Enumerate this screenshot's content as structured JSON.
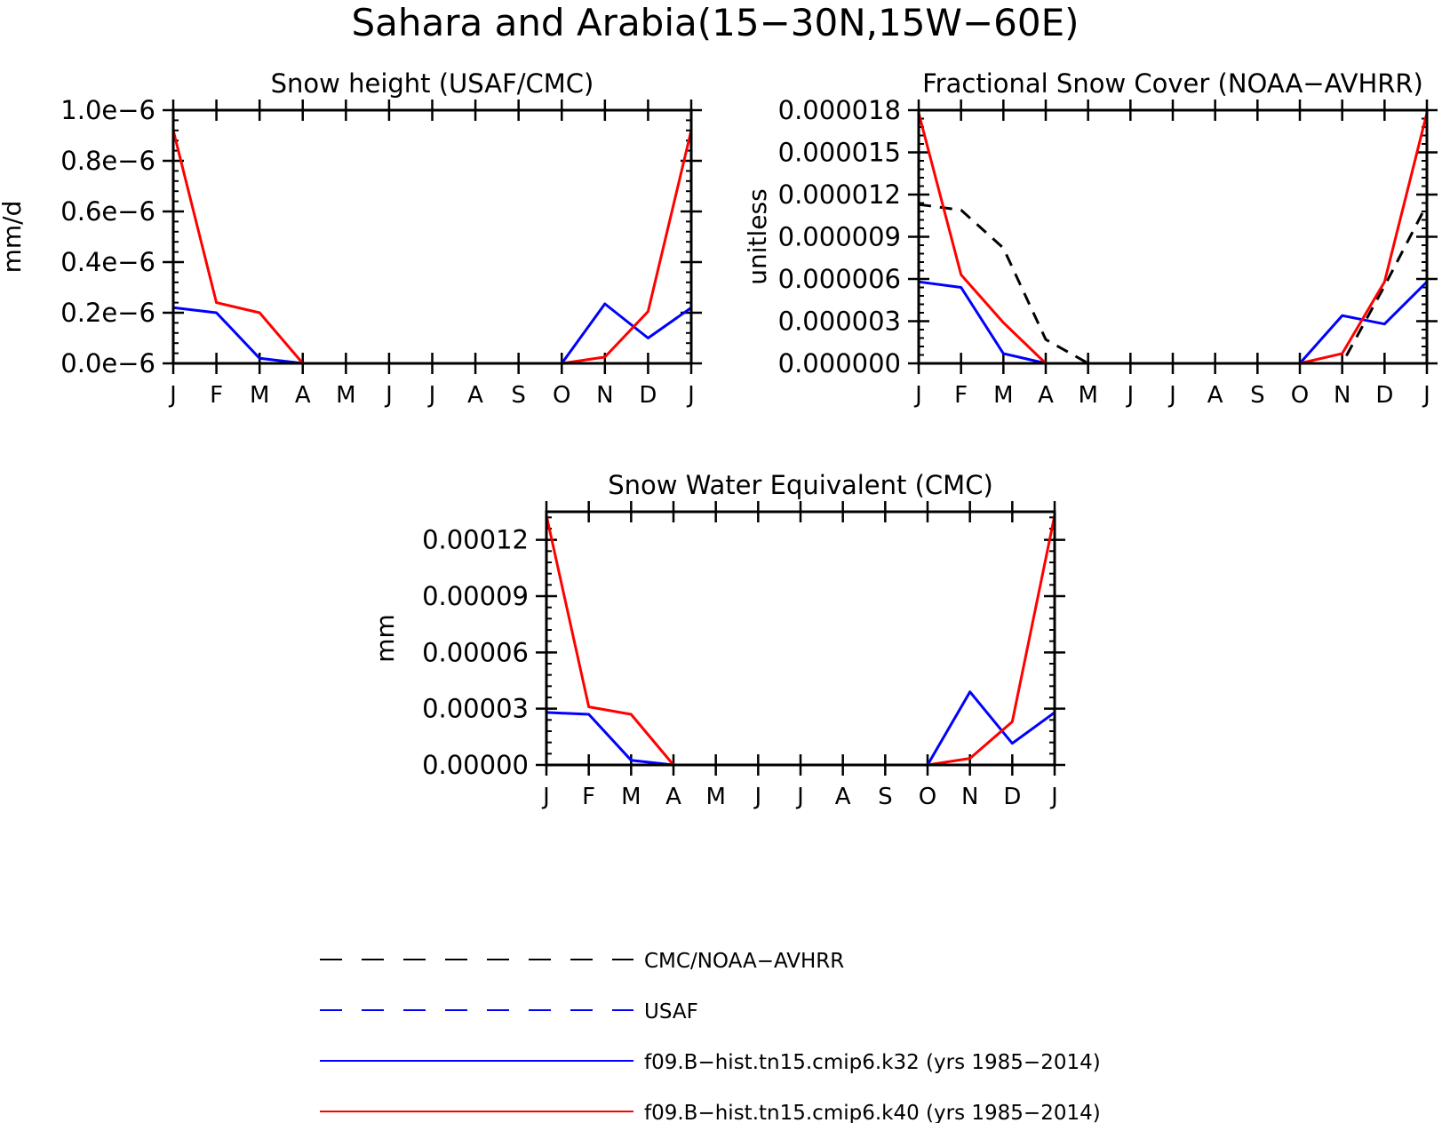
{
  "figure": {
    "title": "Sahara and Arabia(15−30N,15W−60E)"
  },
  "colors": {
    "obs": "#000000",
    "usaf": "#0000ff",
    "k32": "#0000ff",
    "k40": "#ff0000"
  },
  "legend": {
    "items": [
      {
        "label": "CMC/NOAA−AVHRR",
        "color": "#000000",
        "dashed": true
      },
      {
        "label": "USAF",
        "color": "#0000ff",
        "dashed": true
      },
      {
        "label": "f09.B−hist.tn15.cmip6.k32 (yrs 1985−2014)",
        "color": "#0000ff",
        "dashed": false
      },
      {
        "label": "f09.B−hist.tn15.cmip6.k40 (yrs 1985−2014)",
        "color": "#ff0000",
        "dashed": false
      }
    ]
  },
  "chart_data": [
    {
      "type": "line",
      "title": "Snow height (USAF/CMC)",
      "xlabel": "",
      "ylabel": "mm/d",
      "categories": [
        "J",
        "F",
        "M",
        "A",
        "M",
        "J",
        "J",
        "A",
        "S",
        "O",
        "N",
        "D",
        "J"
      ],
      "ylim": [
        0,
        1e-06
      ],
      "yticks": [
        0,
        2e-07,
        4e-07,
        6e-07,
        8e-07,
        1e-06
      ],
      "yticklabels": [
        "0.0e−6",
        "0.2e−6",
        "0.4e−6",
        "0.6e−6",
        "0.8e−6",
        "1.0e−6"
      ],
      "grid": false,
      "series": [
        {
          "name": "CMC/NOAA−AVHRR",
          "color": "#000000",
          "dashed": true,
          "values": [
            0,
            0,
            0,
            0,
            0,
            0,
            0,
            0,
            0,
            0,
            0,
            0,
            0
          ]
        },
        {
          "name": "f09.B−hist.tn15.cmip6.k32 (yrs 1985−2014)",
          "color": "#0000ff",
          "dashed": false,
          "values": [
            2.2e-07,
            2e-07,
            2e-08,
            0,
            0,
            0,
            0,
            0,
            0,
            0,
            2.35e-07,
            1e-07,
            2.2e-07
          ]
        },
        {
          "name": "f09.B−hist.tn15.cmip6.k40 (yrs 1985−2014)",
          "color": "#ff0000",
          "dashed": false,
          "values": [
            9.2e-07,
            2.4e-07,
            2e-07,
            0,
            0,
            0,
            0,
            0,
            0,
            0,
            2.5e-08,
            2.05e-07,
            9.2e-07
          ]
        }
      ]
    },
    {
      "type": "line",
      "title": "Fractional Snow Cover (NOAA−AVHRR)",
      "xlabel": "",
      "ylabel": "unitless",
      "categories": [
        "J",
        "F",
        "M",
        "A",
        "M",
        "J",
        "J",
        "A",
        "S",
        "O",
        "N",
        "D",
        "J"
      ],
      "ylim": [
        0,
        1.8e-05
      ],
      "yticks": [
        0,
        3e-06,
        6e-06,
        9e-06,
        1.2e-05,
        1.5e-05,
        1.8e-05
      ],
      "yticklabels": [
        "0.000000",
        "0.000003",
        "0.000006",
        "0.000009",
        "0.000012",
        "0.000015",
        "0.000018"
      ],
      "grid": false,
      "series": [
        {
          "name": "CMC/NOAA−AVHRR",
          "color": "#000000",
          "dashed": true,
          "values": [
            1.13e-05,
            1.09e-05,
            8.2e-06,
            1.7e-06,
            0,
            0,
            0,
            0,
            0,
            0,
            0,
            5.5e-06,
            1.13e-05
          ]
        },
        {
          "name": "f09.B−hist.tn15.cmip6.k32 (yrs 1985−2014)",
          "color": "#0000ff",
          "dashed": false,
          "values": [
            5.8e-06,
            5.4e-06,
            7e-07,
            0,
            0,
            0,
            0,
            0,
            0,
            0,
            3.4e-06,
            2.8e-06,
            5.8e-06
          ]
        },
        {
          "name": "f09.B−hist.tn15.cmip6.k40 (yrs 1985−2014)",
          "color": "#ff0000",
          "dashed": false,
          "values": [
            1.78e-05,
            6.3e-06,
            2.9e-06,
            0,
            0,
            0,
            0,
            0,
            0,
            0,
            7e-07,
            5.8e-06,
            1.78e-05
          ]
        }
      ]
    },
    {
      "type": "line",
      "title": "Snow Water Equivalent (CMC)",
      "xlabel": "",
      "ylabel": "mm",
      "categories": [
        "J",
        "F",
        "M",
        "A",
        "M",
        "J",
        "J",
        "A",
        "S",
        "O",
        "N",
        "D",
        "J"
      ],
      "ylim": [
        0,
        0.000135
      ],
      "yticks": [
        0,
        3e-05,
        6e-05,
        9e-05,
        0.00012
      ],
      "yticklabels": [
        "0.00000",
        "0.00003",
        "0.00006",
        "0.00009",
        "0.00012"
      ],
      "grid": false,
      "series": [
        {
          "name": "CMC/NOAA−AVHRR",
          "color": "#000000",
          "dashed": true,
          "values": [
            0,
            0,
            0,
            0,
            0,
            0,
            0,
            0,
            0,
            0,
            0,
            0,
            0
          ]
        },
        {
          "name": "f09.B−hist.tn15.cmip6.k32 (yrs 1985−2014)",
          "color": "#0000ff",
          "dashed": false,
          "values": [
            2.8e-05,
            2.7e-05,
            2.5e-06,
            0,
            0,
            0,
            0,
            0,
            0,
            0,
            3.9e-05,
            1.15e-05,
            2.8e-05
          ]
        },
        {
          "name": "f09.B−hist.tn15.cmip6.k40 (yrs 1985−2014)",
          "color": "#ff0000",
          "dashed": false,
          "values": [
            0.000133,
            3.1e-05,
            2.7e-05,
            0,
            0,
            0,
            0,
            0,
            0,
            0,
            3.5e-06,
            2.3e-05,
            0.000133
          ]
        }
      ]
    }
  ]
}
